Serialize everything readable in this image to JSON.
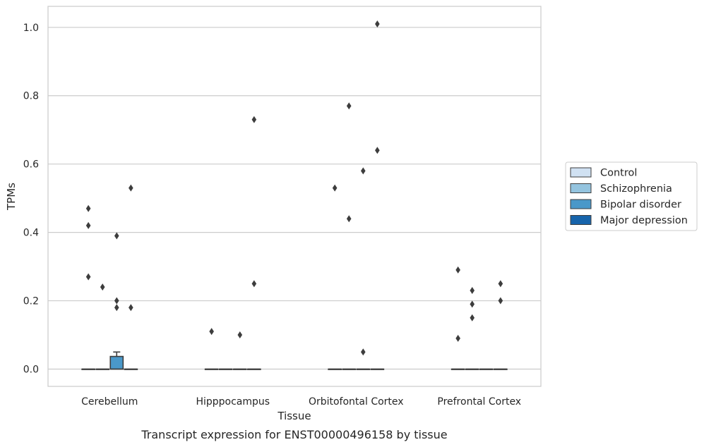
{
  "caption": "Transcript expression for ENST00000496158 by tissue",
  "chart_data": {
    "type": "box",
    "xlabel": "Tissue",
    "ylabel": "TPMs",
    "ylim": [
      -0.05,
      1.06
    ],
    "yticks": [
      0.0,
      0.2,
      0.4,
      0.6,
      0.8,
      1.0
    ],
    "ytick_labels": [
      "0.0",
      "0.2",
      "0.4",
      "0.6",
      "0.8",
      "1.0"
    ],
    "grid": "horizontal",
    "legend_position": "right",
    "categories": [
      "Cerebellum",
      "Hipppocampus",
      "Orbitofontal Cortex",
      "Prefrontal Cortex"
    ],
    "series": [
      {
        "name": "Control",
        "color": "#d0e1f2",
        "boxes": [
          {
            "q1": 0,
            "median": 0,
            "q3": 0,
            "whisker_low": 0,
            "whisker_high": 0,
            "outliers": [
              0.27,
              0.42,
              0.47
            ]
          },
          {
            "q1": 0,
            "median": 0,
            "q3": 0,
            "whisker_low": 0,
            "whisker_high": 0,
            "outliers": [
              0.11
            ]
          },
          {
            "q1": 0,
            "median": 0,
            "q3": 0,
            "whisker_low": 0,
            "whisker_high": 0,
            "outliers": [
              0.53
            ]
          },
          {
            "q1": 0,
            "median": 0,
            "q3": 0,
            "whisker_low": 0,
            "whisker_high": 0,
            "outliers": [
              0.09,
              0.29
            ]
          }
        ]
      },
      {
        "name": "Schizophrenia",
        "color": "#94c4df",
        "boxes": [
          {
            "q1": 0,
            "median": 0,
            "q3": 0,
            "whisker_low": 0,
            "whisker_high": 0,
            "outliers": [
              0.24
            ]
          },
          {
            "q1": 0,
            "median": 0,
            "q3": 0,
            "whisker_low": 0,
            "whisker_high": 0,
            "outliers": []
          },
          {
            "q1": 0,
            "median": 0,
            "q3": 0,
            "whisker_low": 0,
            "whisker_high": 0,
            "outliers": [
              0.44,
              0.77
            ]
          },
          {
            "q1": 0,
            "median": 0,
            "q3": 0,
            "whisker_low": 0,
            "whisker_high": 0,
            "outliers": [
              0.15,
              0.19,
              0.23
            ]
          }
        ]
      },
      {
        "name": "Bipolar disorder",
        "color": "#4a98c9",
        "boxes": [
          {
            "q1": 0,
            "median": 0,
            "q3": 0.037,
            "whisker_low": 0,
            "whisker_high": 0.05,
            "outliers": [
              0.18,
              0.2,
              0.39
            ]
          },
          {
            "q1": 0,
            "median": 0,
            "q3": 0,
            "whisker_low": 0,
            "whisker_high": 0,
            "outliers": [
              0.1
            ]
          },
          {
            "q1": 0,
            "median": 0,
            "q3": 0,
            "whisker_low": 0,
            "whisker_high": 0,
            "outliers": [
              0.05,
              0.58
            ]
          },
          {
            "q1": 0,
            "median": 0,
            "q3": 0,
            "whisker_low": 0,
            "whisker_high": 0,
            "outliers": []
          }
        ]
      },
      {
        "name": "Major depression",
        "color": "#1764ab",
        "boxes": [
          {
            "q1": 0,
            "median": 0,
            "q3": 0,
            "whisker_low": 0,
            "whisker_high": 0,
            "outliers": [
              0.18,
              0.53
            ]
          },
          {
            "q1": 0,
            "median": 0,
            "q3": 0,
            "whisker_low": 0,
            "whisker_high": 0,
            "outliers": [
              0.25,
              0.73
            ]
          },
          {
            "q1": 0,
            "median": 0,
            "q3": 0,
            "whisker_low": 0,
            "whisker_high": 0,
            "outliers": [
              0.64,
              1.01
            ]
          },
          {
            "q1": 0,
            "median": 0,
            "q3": 0,
            "whisker_low": 0,
            "whisker_high": 0,
            "outliers": [
              0.2,
              0.25
            ]
          }
        ]
      }
    ]
  }
}
